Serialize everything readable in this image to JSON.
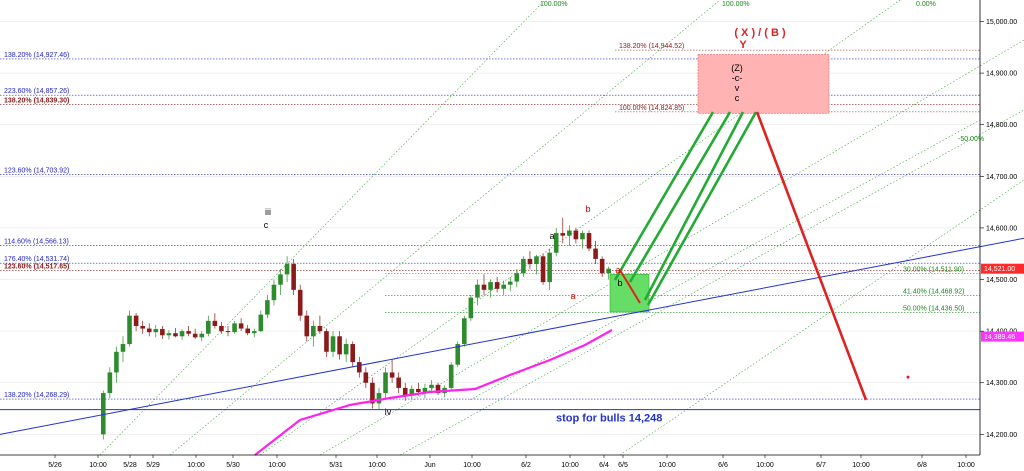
{
  "chart_data": {
    "type": "candlestick",
    "y_axis": {
      "ylim": [
        14160,
        15030
      ],
      "ticks": [
        "15,000.00",
        "14,900.00",
        "14,800.00",
        "14,700.00",
        "14,600.00",
        "14,500.00",
        "14,400.00",
        "14,300.00",
        "14,200.00"
      ],
      "tick_values": [
        15000,
        14900,
        14800,
        14700,
        14600,
        14500,
        14400,
        14300,
        14200
      ]
    },
    "x_axis": {
      "ticks": [
        "5/26",
        "10:00",
        "5/28",
        "5/29",
        "10:00",
        "5/30",
        "10:00",
        "5/31",
        "10:00",
        "Jun",
        "10:00",
        "6/2",
        "10:00",
        "6/4",
        "6/5",
        "10:00",
        "6/6",
        "10:00",
        "6/7",
        "10:00",
        "6/8",
        "10:00"
      ],
      "tick_positions": [
        0.05,
        0.15,
        0.22,
        0.27,
        0.37,
        0.44,
        0.54,
        0.63,
        0.73,
        0.82,
        0.92,
        1.0,
        1.1,
        1.18,
        1.23,
        1.33,
        1.4,
        1.5,
        1.6,
        1.7,
        1.8,
        1.9
      ]
    },
    "price_badges": [
      {
        "label": "14,521.00",
        "value": 14521,
        "color": "#ff2a2a"
      },
      {
        "label": "14,389.46",
        "value": 14389.46,
        "color": "#ff33ff"
      }
    ],
    "levels_left": [
      {
        "label": "138.20% (14,927.46)",
        "value": 14927.46,
        "color": "#2222cc"
      },
      {
        "label": "223.60% (14,857.26)",
        "value": 14857.26,
        "color": "#2222cc"
      },
      {
        "label": "138.20% (14,839.30)",
        "value": 14839.3,
        "color": "#8b1a1a",
        "bold": true
      },
      {
        "label": "123.60% (14,703.92)",
        "value": 14703.92,
        "color": "#2222cc"
      },
      {
        "label": "114.60% (14,566.13)",
        "value": 14566.13,
        "color": "#2222cc"
      },
      {
        "label": "176.40% (14,531.74)",
        "value": 14531.74,
        "color": "#2222cc"
      },
      {
        "label": "123.60% (14,517.65)",
        "value": 14517.65,
        "color": "#8b1a1a",
        "bold": true
      },
      {
        "label": "138.20% (14,268.29)",
        "value": 14268.29,
        "color": "#2222cc"
      }
    ],
    "levels_right": [
      {
        "label": "138.20% (14,944.52)",
        "value": 14944.52,
        "color": "#8b1a1a"
      },
      {
        "label": "100.00% (14,824.85)",
        "value": 14824.85,
        "color": "#8b1a1a"
      },
      {
        "label": "30.00% (14,511.90)",
        "value": 14511.9,
        "color": "#1a8a1a"
      },
      {
        "label": "41.40% (14,468.92)",
        "value": 14468.92,
        "color": "#1a8a1a"
      },
      {
        "label": "50.00% (14,436.50)",
        "value": 14436.5,
        "color": "#1a8a1a"
      }
    ],
    "channel_labels": [
      "100.00%",
      "100.00%",
      "0.00%",
      "-50.00%"
    ],
    "stop_line": {
      "label": "stop for bulls 14,248",
      "value": 14248
    },
    "top_label": {
      "line1": "( X ) / ( B )",
      "line2": "Y"
    },
    "target_box_labels": [
      "(Z)",
      "-c-",
      "v",
      "c"
    ],
    "wave_labels": [
      {
        "text": "iii",
        "color": "#000000"
      },
      {
        "text": "c",
        "color": "#000000"
      },
      {
        "text": "iv",
        "color": "#000000"
      },
      {
        "text": "a",
        "color": "#000000"
      },
      {
        "text": "b",
        "color": "#000000"
      },
      {
        "text": "b",
        "color": "#cc0000"
      },
      {
        "text": "a",
        "color": "#cc0000"
      },
      {
        "text": "a",
        "color": "#cc0000"
      }
    ],
    "candles": [
      [
        14200,
        14285,
        14190,
        14280
      ],
      [
        14280,
        14330,
        14270,
        14320
      ],
      [
        14320,
        14370,
        14300,
        14360
      ],
      [
        14360,
        14390,
        14340,
        14375
      ],
      [
        14375,
        14440,
        14370,
        14430
      ],
      [
        14430,
        14435,
        14400,
        14410
      ],
      [
        14410,
        14420,
        14395,
        14405
      ],
      [
        14405,
        14415,
        14390,
        14398
      ],
      [
        14398,
        14412,
        14388,
        14404
      ],
      [
        14404,
        14410,
        14385,
        14392
      ],
      [
        14392,
        14402,
        14384,
        14396
      ],
      [
        14396,
        14406,
        14388,
        14390
      ],
      [
        14390,
        14404,
        14383,
        14400
      ],
      [
        14400,
        14410,
        14390,
        14395
      ],
      [
        14395,
        14405,
        14385,
        14388
      ],
      [
        14388,
        14400,
        14380,
        14395
      ],
      [
        14395,
        14430,
        14390,
        14420
      ],
      [
        14420,
        14435,
        14405,
        14410
      ],
      [
        14410,
        14418,
        14395,
        14400
      ],
      [
        14400,
        14410,
        14390,
        14398
      ],
      [
        14398,
        14420,
        14395,
        14415
      ],
      [
        14415,
        14425,
        14400,
        14405
      ],
      [
        14405,
        14412,
        14392,
        14396
      ],
      [
        14396,
        14405,
        14388,
        14400
      ],
      [
        14400,
        14440,
        14398,
        14432
      ],
      [
        14432,
        14470,
        14425,
        14460
      ],
      [
        14460,
        14500,
        14450,
        14490
      ],
      [
        14490,
        14520,
        14470,
        14510
      ],
      [
        14510,
        14545,
        14495,
        14530
      ],
      [
        14530,
        14540,
        14470,
        14480
      ],
      [
        14480,
        14490,
        14420,
        14430
      ],
      [
        14430,
        14440,
        14380,
        14390
      ],
      [
        14390,
        14420,
        14370,
        14410
      ],
      [
        14410,
        14430,
        14395,
        14400
      ],
      [
        14400,
        14405,
        14350,
        14360
      ],
      [
        14360,
        14400,
        14350,
        14390
      ],
      [
        14390,
        14400,
        14345,
        14355
      ],
      [
        14355,
        14385,
        14340,
        14375
      ],
      [
        14375,
        14380,
        14330,
        14340
      ],
      [
        14340,
        14350,
        14310,
        14320
      ],
      [
        14320,
        14330,
        14290,
        14300
      ],
      [
        14300,
        14310,
        14250,
        14260
      ],
      [
        14260,
        14290,
        14248,
        14280
      ],
      [
        14280,
        14330,
        14270,
        14320
      ],
      [
        14320,
        14345,
        14300,
        14310
      ],
      [
        14310,
        14320,
        14280,
        14290
      ],
      [
        14290,
        14300,
        14265,
        14275
      ],
      [
        14275,
        14295,
        14268,
        14288
      ],
      [
        14288,
        14300,
        14275,
        14282
      ],
      [
        14282,
        14298,
        14270,
        14290
      ],
      [
        14290,
        14305,
        14280,
        14296
      ],
      [
        14296,
        14300,
        14276,
        14280
      ],
      [
        14280,
        14295,
        14272,
        14290
      ],
      [
        14290,
        14340,
        14285,
        14335
      ],
      [
        14335,
        14380,
        14330,
        14375
      ],
      [
        14375,
        14430,
        14370,
        14425
      ],
      [
        14425,
        14470,
        14420,
        14465
      ],
      [
        14465,
        14500,
        14450,
        14490
      ],
      [
        14490,
        14510,
        14470,
        14480
      ],
      [
        14480,
        14500,
        14465,
        14495
      ],
      [
        14495,
        14505,
        14475,
        14482
      ],
      [
        14482,
        14498,
        14470,
        14490
      ],
      [
        14490,
        14505,
        14478,
        14496
      ],
      [
        14496,
        14520,
        14485,
        14512
      ],
      [
        14512,
        14545,
        14505,
        14540
      ],
      [
        14540,
        14555,
        14520,
        14530
      ],
      [
        14530,
        14548,
        14510,
        14545
      ],
      [
        14545,
        14550,
        14490,
        14495
      ],
      [
        14495,
        14560,
        14480,
        14552
      ],
      [
        14552,
        14600,
        14545,
        14590
      ],
      [
        14590,
        14620,
        14570,
        14585
      ],
      [
        14585,
        14605,
        14565,
        14595
      ],
      [
        14595,
        14600,
        14570,
        14578
      ],
      [
        14578,
        14595,
        14560,
        14590
      ],
      [
        14590,
        14595,
        14555,
        14560
      ],
      [
        14560,
        14575,
        14530,
        14540
      ],
      [
        14540,
        14545,
        14505,
        14512
      ],
      [
        14512,
        14525,
        14500,
        14521
      ]
    ]
  }
}
